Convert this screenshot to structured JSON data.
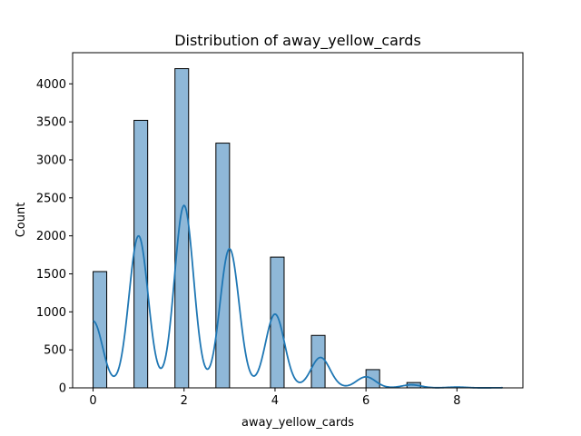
{
  "chart_data": {
    "type": "bar",
    "title": "Distribution of away_yellow_cards",
    "xlabel": "away_yellow_cards",
    "ylabel": "Count",
    "xlim": [
      -0.45,
      9.45
    ],
    "ylim": [
      0,
      4410
    ],
    "xticks": [
      0,
      2,
      4,
      6,
      8
    ],
    "yticks": [
      0,
      500,
      1000,
      1500,
      2000,
      2500,
      3000,
      3500,
      4000
    ],
    "bar_color": "#8fb8d8",
    "bar_edge_color": "#000000",
    "kde_color": "#1f77b4",
    "bins": [
      {
        "start": 0.0,
        "end": 0.3,
        "count": 1530
      },
      {
        "start": 0.9,
        "end": 1.2,
        "count": 3520
      },
      {
        "start": 1.8,
        "end": 2.1,
        "count": 4200
      },
      {
        "start": 2.7,
        "end": 3.0,
        "count": 3220
      },
      {
        "start": 3.9,
        "end": 4.2,
        "count": 1720
      },
      {
        "start": 4.8,
        "end": 5.1,
        "count": 690
      },
      {
        "start": 6.0,
        "end": 6.3,
        "count": 240
      },
      {
        "start": 6.9,
        "end": 7.2,
        "count": 70
      },
      {
        "start": 7.8,
        "end": 8.1,
        "count": 10
      },
      {
        "start": 8.7,
        "end": 9.0,
        "count": 3
      }
    ],
    "kde_peaks": [
      {
        "x": 0,
        "y": 880
      },
      {
        "x": 1,
        "y": 2000
      },
      {
        "x": 2,
        "y": 2400
      },
      {
        "x": 3,
        "y": 1830
      },
      {
        "x": 4,
        "y": 970
      },
      {
        "x": 5,
        "y": 400
      },
      {
        "x": 6,
        "y": 145
      },
      {
        "x": 7,
        "y": 40
      },
      {
        "x": 8,
        "y": 10
      },
      {
        "x": 9,
        "y": 2
      }
    ]
  }
}
